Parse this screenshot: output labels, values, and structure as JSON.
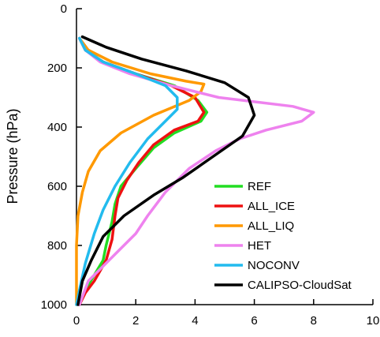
{
  "chart_data": {
    "type": "line",
    "title": "",
    "xlabel": "",
    "ylabel": "Pressure (hPa)",
    "xlim": [
      0,
      10
    ],
    "ylim": [
      1000,
      0
    ],
    "y_inverted": true,
    "xticks": [
      0,
      2,
      4,
      6,
      8,
      10
    ],
    "yticks": [
      0,
      200,
      400,
      600,
      800,
      1000
    ],
    "grid": false,
    "legend_position": "lower-right",
    "series": [
      {
        "name": "REF",
        "color": "#22dd22",
        "points": [
          [
            0.1,
            100
          ],
          [
            0.3,
            140
          ],
          [
            0.9,
            180
          ],
          [
            2.0,
            220
          ],
          [
            3.3,
            260
          ],
          [
            4.1,
            310
          ],
          [
            4.4,
            350
          ],
          [
            4.2,
            380
          ],
          [
            3.3,
            420
          ],
          [
            2.6,
            470
          ],
          [
            2.0,
            540
          ],
          [
            1.5,
            600
          ],
          [
            1.3,
            660
          ],
          [
            1.2,
            720
          ],
          [
            1.0,
            800
          ],
          [
            0.9,
            850
          ],
          [
            0.6,
            900
          ],
          [
            0.3,
            950
          ],
          [
            0.1,
            1000
          ]
        ]
      },
      {
        "name": "ALL_ICE",
        "color": "#ee1111",
        "points": [
          [
            0.1,
            100
          ],
          [
            0.3,
            140
          ],
          [
            0.9,
            180
          ],
          [
            2.0,
            220
          ],
          [
            3.2,
            260
          ],
          [
            4.0,
            300
          ],
          [
            4.3,
            350
          ],
          [
            4.1,
            380
          ],
          [
            3.3,
            410
          ],
          [
            2.6,
            460
          ],
          [
            2.1,
            520
          ],
          [
            1.7,
            580
          ],
          [
            1.4,
            640
          ],
          [
            1.3,
            700
          ],
          [
            1.2,
            780
          ],
          [
            1.0,
            850
          ],
          [
            0.6,
            920
          ],
          [
            0.3,
            960
          ],
          [
            0.1,
            1000
          ]
        ]
      },
      {
        "name": "ALL_LIQ",
        "color": "#ff9900",
        "points": [
          [
            0.1,
            100
          ],
          [
            0.4,
            140
          ],
          [
            1.2,
            180
          ],
          [
            2.5,
            220
          ],
          [
            3.7,
            245
          ],
          [
            4.3,
            255
          ],
          [
            4.2,
            280
          ],
          [
            3.8,
            310
          ],
          [
            2.6,
            360
          ],
          [
            1.5,
            420
          ],
          [
            0.8,
            480
          ],
          [
            0.4,
            550
          ],
          [
            0.2,
            620
          ],
          [
            0.05,
            700
          ],
          [
            0,
            800
          ],
          [
            0,
            1000
          ]
        ]
      },
      {
        "name": "HET",
        "color": "#ee82ee",
        "points": [
          [
            0.1,
            100
          ],
          [
            0.3,
            140
          ],
          [
            0.8,
            180
          ],
          [
            1.8,
            220
          ],
          [
            3.2,
            260
          ],
          [
            4.8,
            300
          ],
          [
            7.3,
            330
          ],
          [
            8.0,
            350
          ],
          [
            7.6,
            380
          ],
          [
            6.4,
            410
          ],
          [
            5.5,
            440
          ],
          [
            4.7,
            480
          ],
          [
            3.8,
            540
          ],
          [
            3.0,
            620
          ],
          [
            2.4,
            700
          ],
          [
            2.0,
            760
          ],
          [
            1.4,
            820
          ],
          [
            0.9,
            870
          ],
          [
            0.4,
            920
          ],
          [
            0.1,
            1000
          ]
        ]
      },
      {
        "name": "NOCONV",
        "color": "#22bbee",
        "points": [
          [
            0.1,
            100
          ],
          [
            0.3,
            140
          ],
          [
            0.9,
            180
          ],
          [
            2.0,
            220
          ],
          [
            3.0,
            260
          ],
          [
            3.4,
            300
          ],
          [
            3.4,
            340
          ],
          [
            3.0,
            380
          ],
          [
            2.4,
            440
          ],
          [
            1.8,
            520
          ],
          [
            1.3,
            600
          ],
          [
            0.9,
            680
          ],
          [
            0.6,
            760
          ],
          [
            0.3,
            860
          ],
          [
            0.1,
            950
          ],
          [
            0,
            1000
          ]
        ]
      },
      {
        "name": "CALIPSO-CloudSat",
        "color": "#000000",
        "points": [
          [
            0.2,
            95
          ],
          [
            1.0,
            130
          ],
          [
            2.2,
            170
          ],
          [
            3.7,
            210
          ],
          [
            5.0,
            250
          ],
          [
            5.8,
            300
          ],
          [
            6.0,
            360
          ],
          [
            5.6,
            430
          ],
          [
            4.6,
            500
          ],
          [
            3.6,
            570
          ],
          [
            2.6,
            630
          ],
          [
            1.6,
            700
          ],
          [
            0.9,
            770
          ],
          [
            0.5,
            850
          ],
          [
            0.2,
            920
          ],
          [
            0.05,
            1000
          ]
        ]
      }
    ]
  }
}
